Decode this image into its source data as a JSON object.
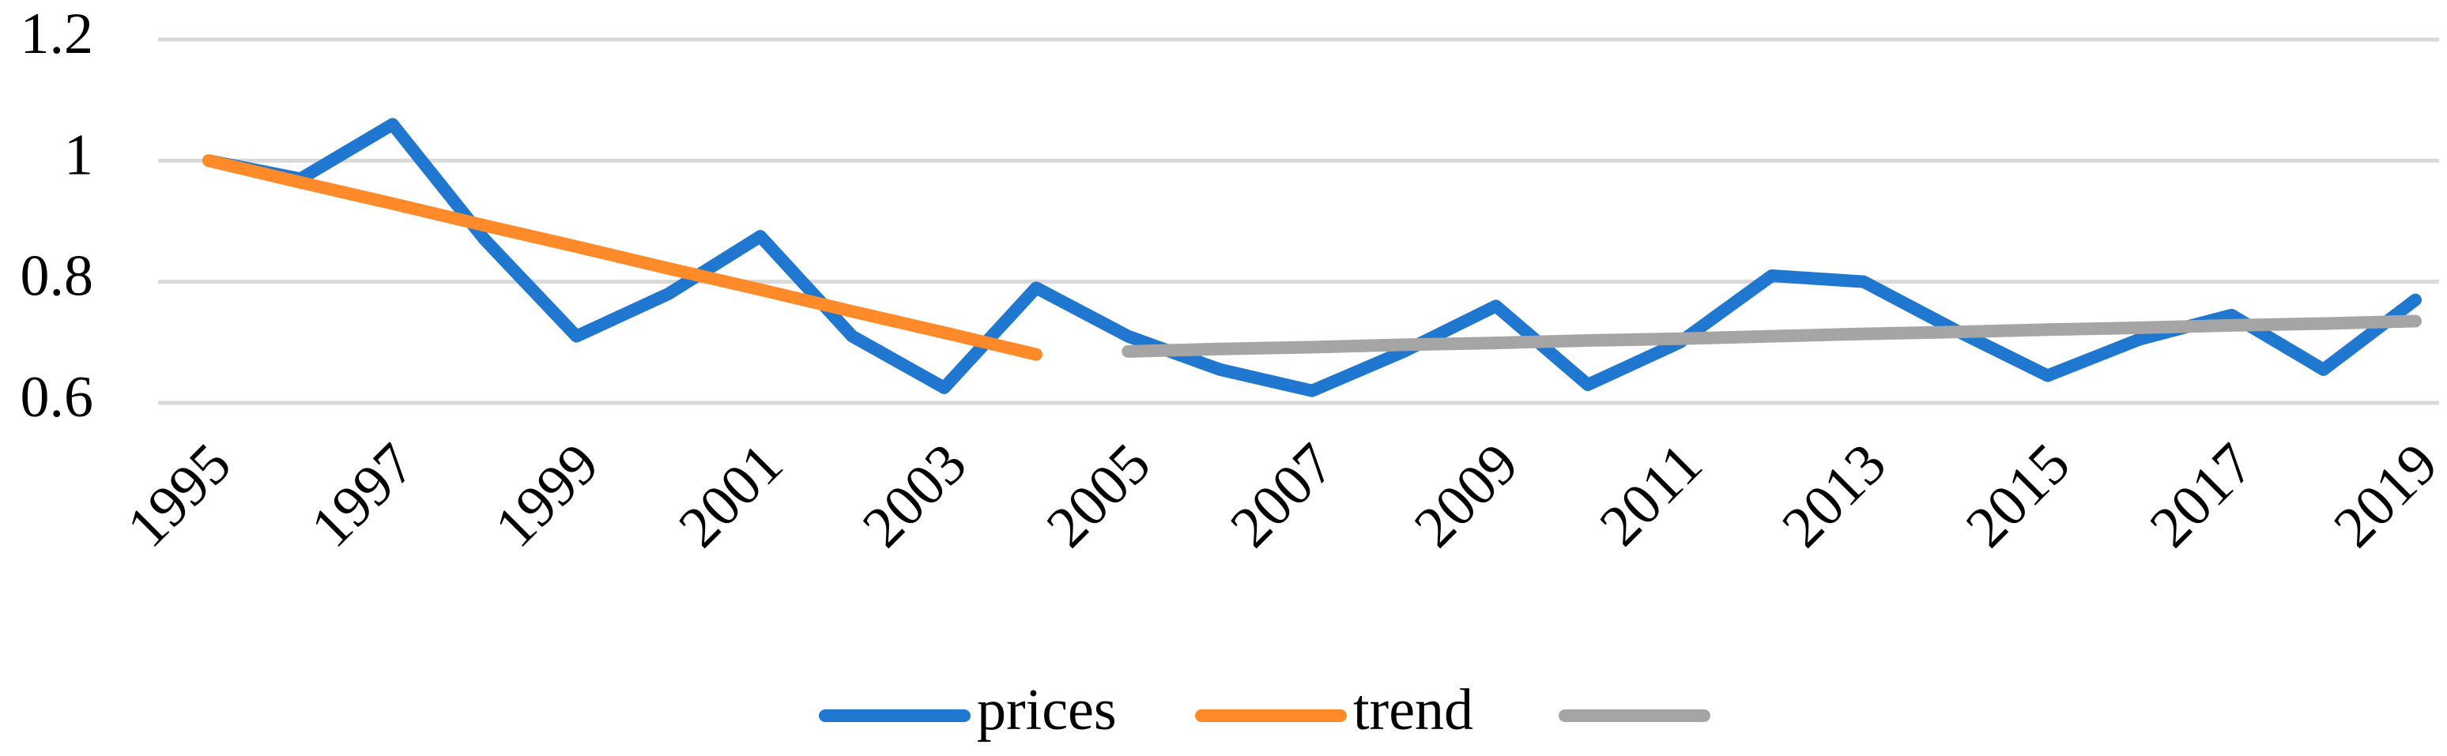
{
  "chart_data": {
    "type": "line",
    "x": [
      1995,
      1996,
      1997,
      1998,
      1999,
      2000,
      2001,
      2002,
      2003,
      2004,
      2005,
      2006,
      2007,
      2008,
      2009,
      2010,
      2011,
      2012,
      2013,
      2014,
      2015,
      2016,
      2017,
      2018,
      2019
    ],
    "series": [
      {
        "name": "prices",
        "color": "#1f77d0",
        "values": [
          1.0,
          0.97,
          1.06,
          0.87,
          0.71,
          0.78,
          0.875,
          0.71,
          0.625,
          0.79,
          0.71,
          0.655,
          0.62,
          0.685,
          0.76,
          0.63,
          0.7,
          0.81,
          0.8,
          0.72,
          0.645,
          0.705,
          0.745,
          0.655,
          0.77
        ]
      },
      {
        "name": "trend",
        "color": "#ff8a2a",
        "values": [
          1.0,
          0.964,
          0.929,
          0.893,
          0.858,
          0.822,
          0.787,
          0.751,
          0.716,
          0.68,
          null,
          null,
          null,
          null,
          null,
          null,
          null,
          null,
          null,
          null,
          null,
          null,
          null,
          null,
          null
        ]
      },
      {
        "color": "#a5a5a5",
        "values": [
          null,
          null,
          null,
          null,
          null,
          null,
          null,
          null,
          null,
          null,
          0.685,
          0.689,
          0.692,
          0.696,
          0.699,
          0.703,
          0.706,
          0.71,
          0.714,
          0.717,
          0.721,
          0.724,
          0.728,
          0.731,
          0.735
        ]
      }
    ],
    "xlim": [
      1995,
      2019
    ],
    "xticks": [
      1995,
      1997,
      1999,
      2001,
      2003,
      2005,
      2007,
      2009,
      2011,
      2013,
      2015,
      2017,
      2019
    ],
    "ylim": [
      0.6,
      1.2
    ],
    "yticks": [
      0.6,
      0.8,
      1,
      1.2
    ],
    "grid": true,
    "legend": "bottom"
  }
}
